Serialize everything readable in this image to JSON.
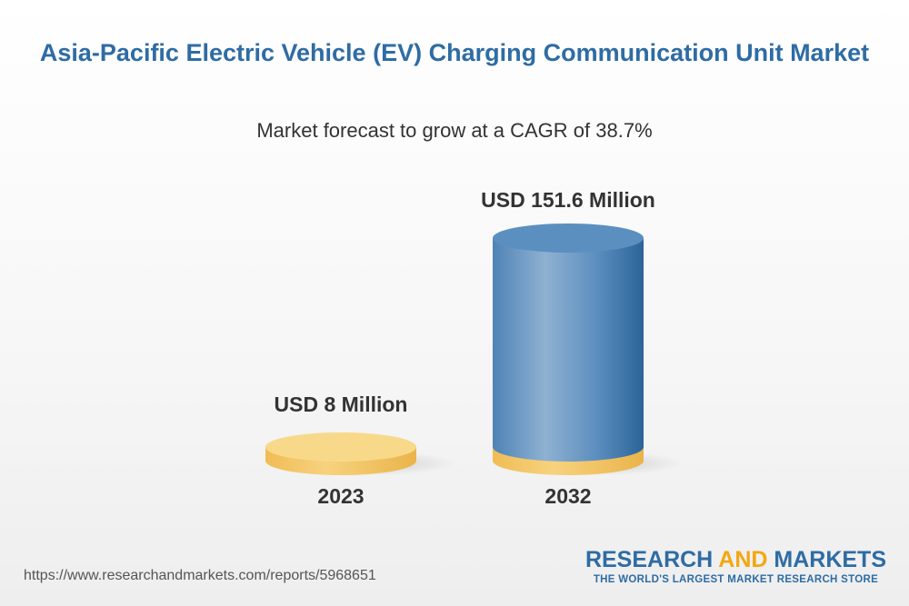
{
  "title": "Asia-Pacific Electric Vehicle (EV) Charging Communication Unit Market",
  "subtitle": "Market forecast to grow at a CAGR of 38.7%",
  "chart_data": {
    "type": "bar",
    "style": "3d-cylinder",
    "categories": [
      "2023",
      "2032"
    ],
    "values": [
      8,
      151.6
    ],
    "unit": "USD Million",
    "data_labels": [
      "USD 8 Million",
      "USD 151.6 Million"
    ],
    "title": "Asia-Pacific Electric Vehicle (EV) Charging Communication Unit Market",
    "subtitle": "Market forecast to grow at a CAGR of 38.7%",
    "cagr": "38.7%",
    "colors": {
      "base": "#f3c25d",
      "base_top": "#f8d98a",
      "bar_dark": "#2d6a9f",
      "bar_light": "#93b5d4",
      "bar_top": "#5b8fc0"
    }
  },
  "footer": {
    "url": "https://www.researchandmarkets.com/reports/5968651",
    "brand_word1": "RESEARCH",
    "brand_word2": "AND",
    "brand_word3": "MARKETS",
    "tagline": "THE WORLD'S LARGEST MARKET RESEARCH STORE"
  }
}
